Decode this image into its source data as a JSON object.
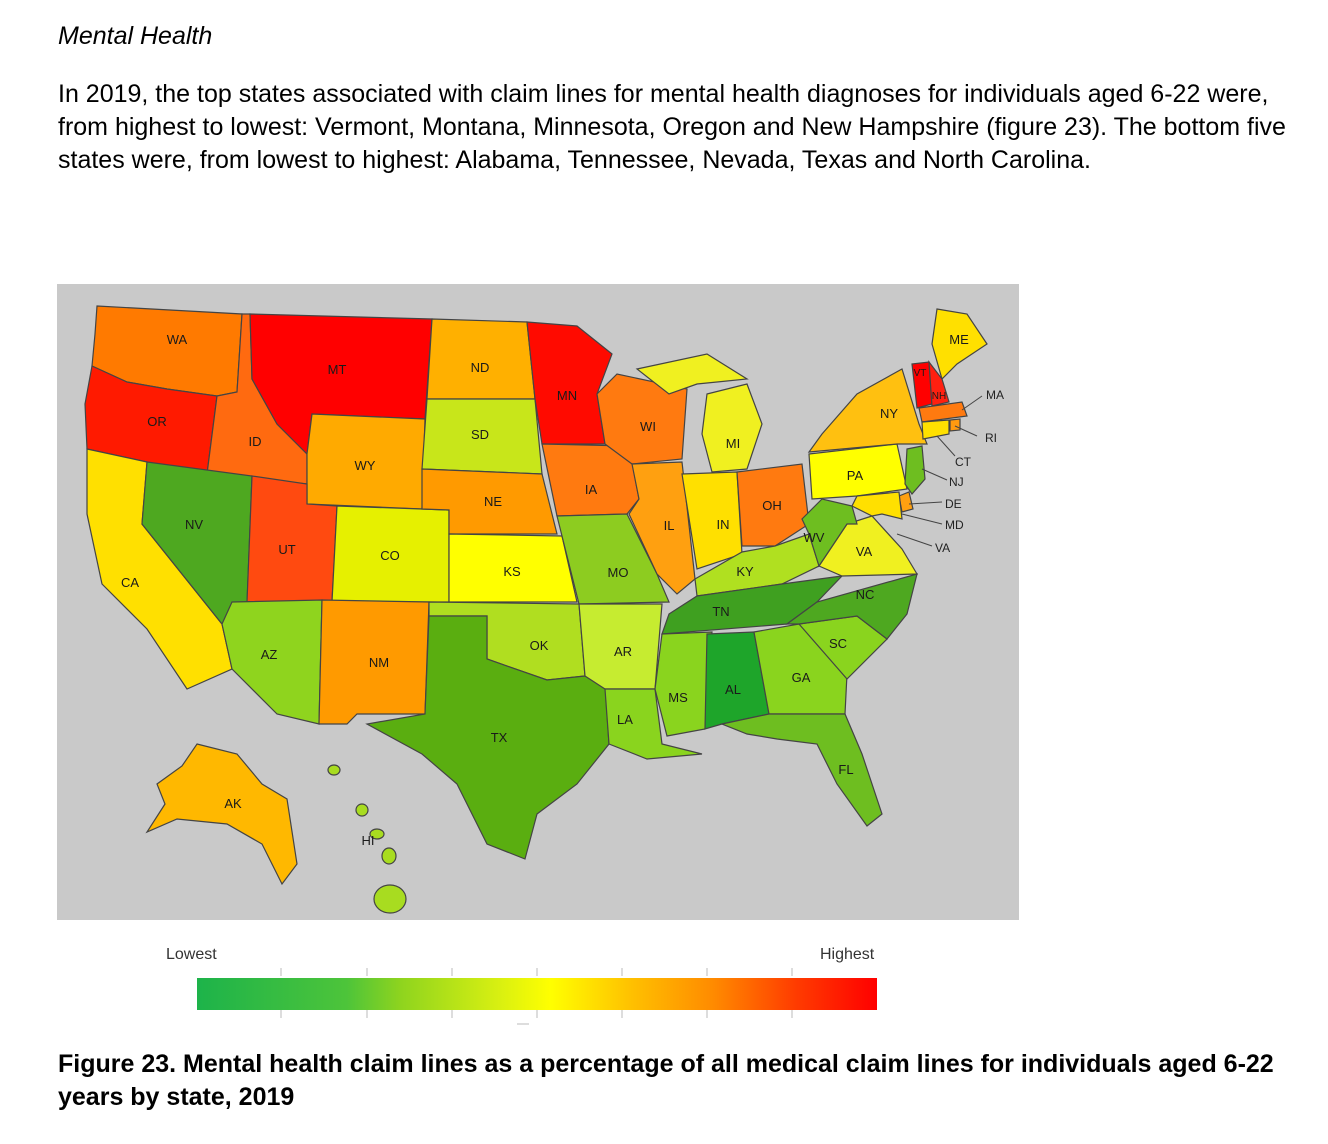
{
  "section_title": "Mental Health",
  "intro": "In 2019, the top states associated with claim lines for mental health diagnoses for individuals aged 6-22 were, from highest to lowest: Vermont, Montana, Minnesota, Oregon and New Hampshire (figure 23). The bottom five states were, from lowest to highest: Alabama, Tennessee, Nevada, Texas and North Carolina.",
  "legend": {
    "low_label": "Lowest",
    "high_label": "Highest"
  },
  "caption": "Figure 23. Mental health claim lines as a percentage of all medical claim lines for individuals aged 6-22 years by state, 2019",
  "colors": {
    "background": "#c9c9c9",
    "lowest": "#1db34a",
    "mid": "#ffff00",
    "highest": "#ff0000"
  },
  "states": {
    "WA": {
      "label": "WA",
      "color": "#ff7a00"
    },
    "OR": {
      "label": "OR",
      "color": "#ff1a00"
    },
    "CA": {
      "label": "CA",
      "color": "#ffe000"
    },
    "ID": {
      "label": "ID",
      "color": "#ff6a10"
    },
    "NV": {
      "label": "NV",
      "color": "#4ea820"
    },
    "MT": {
      "label": "MT",
      "color": "#ff0000"
    },
    "WY": {
      "label": "WY",
      "color": "#ffaa00"
    },
    "UT": {
      "label": "UT",
      "color": "#ff4a10"
    },
    "AZ": {
      "label": "AZ",
      "color": "#8fd41e"
    },
    "CO": {
      "label": "CO",
      "color": "#e6f000"
    },
    "NM": {
      "label": "NM",
      "color": "#ff9a00"
    },
    "ND": {
      "label": "ND",
      "color": "#ffb000"
    },
    "SD": {
      "label": "SD",
      "color": "#c8e61a"
    },
    "NE": {
      "label": "NE",
      "color": "#ff9a00"
    },
    "KS": {
      "label": "KS",
      "color": "#ffff00"
    },
    "OK": {
      "label": "OK",
      "color": "#b0de20"
    },
    "TX": {
      "label": "TX",
      "color": "#5aae10"
    },
    "MN": {
      "label": "MN",
      "color": "#ff0a00"
    },
    "IA": {
      "label": "IA",
      "color": "#ff7a10"
    },
    "MO": {
      "label": "MO",
      "color": "#8dcc20"
    },
    "AR": {
      "label": "AR",
      "color": "#c6ec30"
    },
    "LA": {
      "label": "LA",
      "color": "#8ad41e"
    },
    "WI": {
      "label": "WI",
      "color": "#ff7a10"
    },
    "IL": {
      "label": "IL",
      "color": "#ffa010"
    },
    "MI": {
      "label": "MI",
      "color": "#f0f020"
    },
    "IN": {
      "label": "IN",
      "color": "#ffe000"
    },
    "OH": {
      "label": "OH",
      "color": "#ff7a10"
    },
    "KY": {
      "label": "KY",
      "color": "#b0e020"
    },
    "TN": {
      "label": "TN",
      "color": "#3fa020"
    },
    "MS": {
      "label": "MS",
      "color": "#8ad41e"
    },
    "AL": {
      "label": "AL",
      "color": "#1ea52a"
    },
    "GA": {
      "label": "GA",
      "color": "#8ad41e"
    },
    "FL": {
      "label": "FL",
      "color": "#6ebe20"
    },
    "SC": {
      "label": "SC",
      "color": "#8ad41e"
    },
    "NC": {
      "label": "NC",
      "color": "#4ea820"
    },
    "VA": {
      "label": "VA",
      "color": "#f0f020"
    },
    "WV": {
      "label": "WV",
      "color": "#6ebe20"
    },
    "PA": {
      "label": "PA",
      "color": "#ffff00"
    },
    "NY": {
      "label": "NY",
      "color": "#ffc010"
    },
    "ME": {
      "label": "ME",
      "color": "#ffe000"
    },
    "VT": {
      "label": "VT",
      "color": "#ff0000"
    },
    "NH": {
      "label": "NH",
      "color": "#ff2010"
    },
    "MA": {
      "label": "MA",
      "color": "#ff7a10"
    },
    "RI": {
      "label": "RI",
      "color": "#ff9a10"
    },
    "CT": {
      "label": "CT",
      "color": "#ffe000"
    },
    "NJ": {
      "label": "NJ",
      "color": "#6ebe20"
    },
    "DE": {
      "label": "DE",
      "color": "#ffa010"
    },
    "MD": {
      "label": "MD",
      "color": "#ffe000"
    },
    "AK": {
      "label": "AK",
      "color": "#ffb800"
    },
    "HI": {
      "label": "HI",
      "color": "#a8dc20"
    }
  }
}
